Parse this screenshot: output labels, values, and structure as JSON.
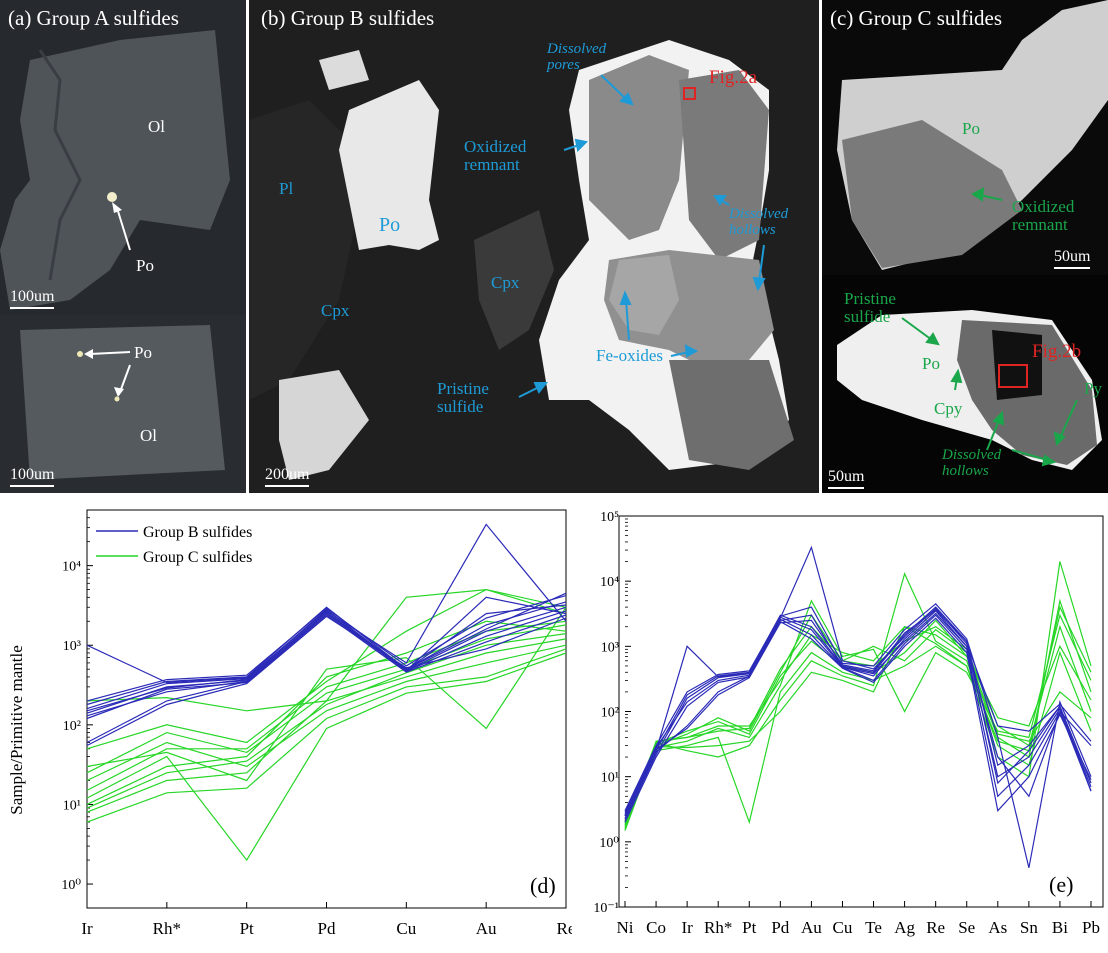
{
  "panels": {
    "a": {
      "title": "(a) Group A sulfides",
      "labels": {
        "ol_top": "Ol",
        "po_top": "Po",
        "po_bottom": "Po",
        "ol_bottom": "Ol"
      },
      "scale_top": "100um",
      "scale_bottom": "100um"
    },
    "b": {
      "title": "(b) Group B sulfides",
      "labels": {
        "dissolved_pores": "Dissolved\npores",
        "fig2a": "Fig.2a",
        "oxidized_remnant": "Oxidized\nremnant",
        "pl": "Pl",
        "po": "Po",
        "dissolved_hollows": "Dissolved\nhollows",
        "cpx_left": "Cpx",
        "cpx_mid": "Cpx",
        "fe_oxides": "Fe-oxides",
        "pristine_sulfide": "Pristine\nsulfide"
      },
      "scale": "200um"
    },
    "c": {
      "title": "(c) Group C sulfides",
      "labels": {
        "po_top": "Po",
        "oxidized_remnant": "Oxidized\nremnant",
        "pristine_sulfide": "Pristine\nsulfide",
        "po_bottom": "Po",
        "fig2b": "Fig.2b",
        "cpy": "Cpy",
        "py": "Py",
        "dissolved_hollows": "Dissolved\nhollows"
      },
      "scale_top": "50um",
      "scale_bottom": "50um"
    }
  },
  "colors": {
    "group_b": "#2b2bb8",
    "group_c": "#27d627",
    "label_blue": "#1e9bd7",
    "label_green": "#1aa64a",
    "marker_red": "#e02424"
  },
  "chart_data": [
    {
      "type": "line",
      "panel_label": "(d)",
      "ylabel": "Sample/Primitive mantle",
      "yscale": "log",
      "ylim": [
        0.5,
        50000
      ],
      "yticks": [
        "10⁰",
        "10¹",
        "10²",
        "10³",
        "10⁴"
      ],
      "categories": [
        "Ir",
        "Rh*",
        "Pt",
        "Pd",
        "Cu",
        "Au",
        "Re"
      ],
      "legend": [
        "Group B sulfides",
        "Group C sulfides"
      ],
      "series": [
        {
          "group": "B",
          "values": [
            180,
            350,
            400,
            3000,
            500,
            1800,
            3500
          ]
        },
        {
          "group": "B",
          "values": [
            160,
            330,
            380,
            2800,
            480,
            1500,
            3000
          ]
        },
        {
          "group": "B",
          "values": [
            140,
            300,
            360,
            2600,
            470,
            1300,
            2700
          ]
        },
        {
          "group": "B",
          "values": [
            120,
            280,
            340,
            2400,
            460,
            1100,
            2400
          ]
        },
        {
          "group": "B",
          "values": [
            200,
            370,
            420,
            2900,
            550,
            2200,
            4200
          ]
        },
        {
          "group": "B",
          "values": [
            1000,
            340,
            390,
            2700,
            600,
            33000,
            2000
          ]
        },
        {
          "group": "B",
          "values": [
            60,
            200,
            350,
            2500,
            480,
            4000,
            2500
          ]
        },
        {
          "group": "B",
          "values": [
            55,
            180,
            330,
            2300,
            520,
            900,
            2200
          ]
        },
        {
          "group": "B",
          "values": [
            130,
            260,
            350,
            2600,
            500,
            1600,
            4500
          ]
        },
        {
          "group": "B",
          "values": [
            150,
            290,
            370,
            2750,
            490,
            2500,
            3200
          ]
        },
        {
          "group": "C",
          "values": [
            10,
            30,
            40,
            400,
            800,
            2000,
            1500
          ]
        },
        {
          "group": "C",
          "values": [
            15,
            50,
            50,
            300,
            600,
            1500,
            2000
          ]
        },
        {
          "group": "C",
          "values": [
            8,
            20,
            25,
            200,
            400,
            800,
            1200
          ]
        },
        {
          "group": "C",
          "values": [
            20,
            60,
            30,
            150,
            350,
            600,
            1000
          ]
        },
        {
          "group": "C",
          "values": [
            6,
            14,
            16,
            120,
            300,
            400,
            900
          ]
        },
        {
          "group": "C",
          "values": [
            25,
            80,
            45,
            250,
            500,
            1200,
            1800
          ]
        },
        {
          "group": "C",
          "values": [
            12,
            40,
            2,
            90,
            250,
            350,
            800
          ]
        },
        {
          "group": "C",
          "values": [
            200,
            220,
            150,
            200,
            4000,
            5000,
            3000
          ]
        },
        {
          "group": "C",
          "values": [
            50,
            100,
            60,
            350,
            1500,
            5000,
            2500
          ]
        },
        {
          "group": "C",
          "values": [
            30,
            45,
            20,
            500,
            700,
            90,
            3000
          ]
        },
        {
          "group": "C",
          "values": [
            9,
            25,
            35,
            180,
            450,
            1000,
            1400
          ]
        }
      ]
    },
    {
      "type": "line",
      "panel_label": "(e)",
      "yscale": "log",
      "ylim": [
        0.1,
        100000
      ],
      "yticks": [
        "10⁻¹",
        "10⁰",
        "10¹",
        "10²",
        "10³",
        "10⁴",
        "10⁵"
      ],
      "categories": [
        "Ni",
        "Co",
        "Ir",
        "Rh*",
        "Pt",
        "Pd",
        "Au",
        "Cu",
        "Te",
        "Ag",
        "Re",
        "Se",
        "As",
        "Sn",
        "Bi",
        "Pb"
      ],
      "series": [
        {
          "group": "B",
          "values": [
            2.5,
            25,
            180,
            350,
            400,
            3000,
            2000,
            500,
            400,
            1500,
            4000,
            1200,
            15,
            30,
            120,
            8
          ]
        },
        {
          "group": "B",
          "values": [
            2.2,
            22,
            160,
            330,
            380,
            2800,
            1800,
            480,
            350,
            1300,
            3500,
            1000,
            10,
            20,
            110,
            7
          ]
        },
        {
          "group": "B",
          "values": [
            2.8,
            28,
            140,
            300,
            360,
            2600,
            1500,
            470,
            300,
            1100,
            3000,
            900,
            5,
            15,
            100,
            6
          ]
        },
        {
          "group": "B",
          "values": [
            2.0,
            20,
            120,
            280,
            340,
            2400,
            1300,
            460,
            280,
            1000,
            2700,
            800,
            3,
            10,
            90,
            9
          ]
        },
        {
          "group": "B",
          "values": [
            3.0,
            30,
            200,
            370,
            420,
            2900,
            4000,
            550,
            500,
            1800,
            4500,
            1300,
            40,
            0.4,
            140,
            10
          ]
        },
        {
          "group": "B",
          "values": [
            2.5,
            25,
            1000,
            340,
            390,
            2700,
            33000,
            600,
            450,
            1400,
            3800,
            1100,
            60,
            50,
            130,
            35
          ]
        },
        {
          "group": "B",
          "values": [
            2.3,
            24,
            60,
            200,
            350,
            2500,
            3000,
            480,
            380,
            1200,
            3200,
            1000,
            20,
            5,
            100,
            30
          ]
        },
        {
          "group": "B",
          "values": [
            2.6,
            26,
            55,
            180,
            330,
            2300,
            2500,
            520,
            420,
            1600,
            3600,
            1200,
            8,
            25,
            120,
            6
          ]
        },
        {
          "group": "C",
          "values": [
            1.5,
            35,
            40,
            60,
            60,
            300,
            1500,
            800,
            600,
            2000,
            1500,
            700,
            40,
            20,
            5000,
            200
          ]
        },
        {
          "group": "C",
          "values": [
            1.8,
            30,
            45,
            80,
            50,
            400,
            3000,
            600,
            500,
            1200,
            2000,
            900,
            60,
            30,
            2000,
            100
          ]
        },
        {
          "group": "C",
          "values": [
            2.0,
            25,
            30,
            40,
            2,
            200,
            800,
            400,
            300,
            500,
            1000,
            500,
            20,
            10,
            20000,
            500
          ]
        },
        {
          "group": "C",
          "values": [
            1.6,
            33,
            25,
            20,
            30,
            150,
            600,
            350,
            250,
            13000,
            1200,
            600,
            30,
            15,
            800,
            50
          ]
        },
        {
          "group": "C",
          "values": [
            1.7,
            28,
            35,
            55,
            40,
            250,
            5000,
            700,
            900,
            100,
            800,
            400,
            50,
            40,
            3000,
            300
          ]
        },
        {
          "group": "C",
          "values": [
            1.9,
            32,
            50,
            70,
            45,
            350,
            1200,
            500,
            400,
            800,
            2500,
            700,
            80,
            60,
            1000,
            150
          ]
        },
        {
          "group": "C",
          "values": [
            1.5,
            29,
            28,
            30,
            35,
            100,
            400,
            300,
            200,
            2000,
            1100,
            500,
            35,
            25,
            4000,
            400
          ]
        },
        {
          "group": "C",
          "values": [
            2.1,
            34,
            40,
            50,
            55,
            450,
            2000,
            600,
            1000,
            600,
            1800,
            800,
            45,
            35,
            200,
            80
          ]
        }
      ]
    }
  ]
}
